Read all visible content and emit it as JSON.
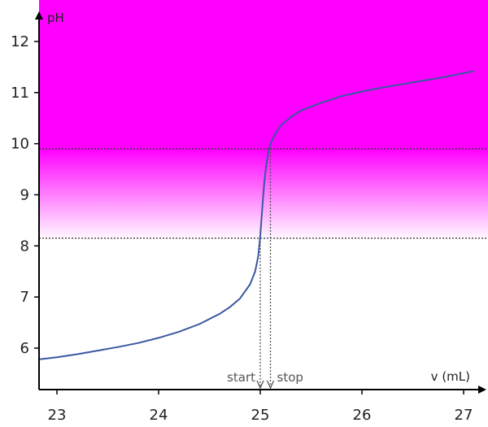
{
  "chart_data": {
    "type": "line",
    "title": "",
    "xlabel": "v (mL)",
    "ylabel": "pH",
    "xlim": [
      22.8,
      27.2
    ],
    "ylim": [
      4.7,
      12.7
    ],
    "x_ticks": [
      23,
      24,
      25,
      26,
      27
    ],
    "y_ticks": [
      6,
      7,
      8,
      9,
      10,
      11,
      12
    ],
    "grid": false,
    "legend": "none",
    "colors": {
      "curve": "#3a58a0",
      "band_top": "#ff00ff",
      "band_bottom": "#ffffff",
      "reference_line": "#333333",
      "annotation": "#555555"
    },
    "indicator_band": {
      "solid_from_ph": 9.9,
      "fades_to_white_at_ph": 8.1
    },
    "reference_lines": [
      {
        "orientation": "horizontal",
        "y": 9.9
      },
      {
        "orientation": "horizontal",
        "y": 8.15
      }
    ],
    "markers": [
      {
        "label": "start",
        "x": 25.0,
        "y_top": 8.15
      },
      {
        "label": "stop",
        "x": 25.1,
        "y_top": 9.9
      }
    ],
    "series": [
      {
        "x": [
          22.83,
          23.0,
          23.2,
          23.4,
          23.6,
          23.8,
          24.0,
          24.2,
          24.4,
          24.6,
          24.7,
          24.8,
          24.9,
          24.95,
          24.98,
          25.0,
          25.02,
          25.04,
          25.06,
          25.08,
          25.1,
          25.15,
          25.2,
          25.3,
          25.4,
          25.6,
          25.8,
          26.0,
          26.2,
          26.5,
          26.8,
          27.1
        ],
        "y": [
          5.78,
          5.82,
          5.88,
          5.95,
          6.02,
          6.1,
          6.2,
          6.32,
          6.47,
          6.67,
          6.8,
          6.97,
          7.25,
          7.5,
          7.8,
          8.2,
          8.75,
          9.25,
          9.6,
          9.85,
          10.0,
          10.2,
          10.35,
          10.52,
          10.65,
          10.8,
          10.93,
          11.02,
          11.1,
          11.2,
          11.3,
          11.42
        ]
      }
    ]
  }
}
